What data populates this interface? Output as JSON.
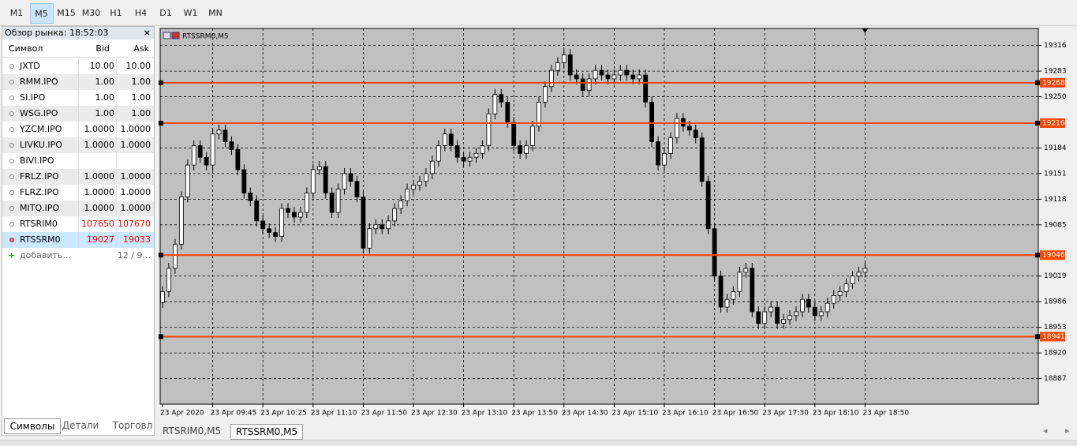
{
  "toolbar": {
    "timeframes": [
      "M1",
      "M5",
      "M15",
      "M30",
      "H1",
      "H4",
      "D1",
      "W1",
      "MN"
    ],
    "active": "M5"
  },
  "market_watch": {
    "title": "Обзор рынка: 18:52:03",
    "close": "×",
    "columns": [
      "Символ",
      "Bid",
      "Ask"
    ],
    "rows": [
      [
        "JXTD",
        "10.00",
        "10.00"
      ],
      [
        "RMM.IPO",
        "1.00",
        "1.00"
      ],
      [
        "SI.IPO",
        "1.00",
        "1.00"
      ],
      [
        "WSG.IPO",
        "1.00",
        "1.00"
      ],
      [
        "YZCM.IPO",
        "1.0000",
        "1.0000"
      ],
      [
        "LIVKU.IPO",
        "1.0000",
        "1.0000"
      ],
      [
        "BIVI.IPO",
        null,
        null
      ],
      [
        "FRLZ.IPO",
        "1.0000",
        "1.0000"
      ],
      [
        "FLRZ.IPO",
        "1.0000",
        "1.0000"
      ],
      [
        "MITQ.IPO",
        "1.0000",
        "1.0000"
      ],
      [
        "RTSRIM0",
        "107650",
        "107670"
      ],
      [
        "RTSSRM0",
        "19027",
        "19033"
      ]
    ],
    "add": "добавить...",
    "count": "12 / 9...",
    "tabs": [
      "Символы",
      "Детали",
      "Торговл"
    ]
  },
  "chart_data": {
    "type": "candlestick",
    "title": "RTSSRM0,M5",
    "categories": [
      "23 Apr 2020",
      null,
      null,
      null,
      null,
      null,
      null,
      null,
      "23 Apr 09:45",
      null,
      null,
      null,
      null,
      null,
      null,
      null,
      "23 Apr 10:25",
      null,
      null,
      null,
      null,
      null,
      null,
      null,
      "23 Apr 11:10",
      null,
      null,
      null,
      null,
      null,
      null,
      null,
      "23 Apr 11:50",
      null,
      null,
      null,
      null,
      null,
      null,
      null,
      "23 Apr 12:30",
      null,
      null,
      null,
      null,
      null,
      null,
      null,
      "23 Apr 13:10",
      null,
      null,
      null,
      null,
      null,
      null,
      null,
      "23 Apr 13:50",
      null,
      null,
      null,
      null,
      null,
      null,
      null,
      "23 Apr 14:30",
      null,
      null,
      null,
      null,
      null,
      null,
      null,
      "23 Apr 15:10",
      null,
      null,
      null,
      null,
      null,
      null,
      null,
      "23 Apr 16:10",
      null,
      null,
      null,
      null,
      null,
      null,
      null,
      "23 Apr 16:50",
      null,
      null,
      null,
      null,
      null,
      null,
      null,
      "23 Apr 17:30",
      null,
      null,
      null,
      null,
      null,
      null,
      null,
      "23 Apr 18:10",
      null,
      null,
      null,
      null,
      null,
      null,
      null,
      "23 Apr 18:50"
    ],
    "open": [
      18985,
      18999,
      19029,
      19060,
      19121,
      19162,
      19187,
      19172,
      19162,
      19202,
      19207,
      19192,
      19182,
      19156,
      19126,
      19116,
      19090,
      19080,
      19075,
      19070,
      19106,
      19101,
      19095,
      19101,
      19126,
      19156,
      19160,
      19126,
      19101,
      19131,
      19151,
      19141,
      19121,
      19055,
      19080,
      19085,
      19080,
      19090,
      19106,
      19116,
      19131,
      19136,
      19141,
      19151,
      19167,
      19187,
      19202,
      19187,
      19172,
      19167,
      19172,
      19177,
      19187,
      19228,
      19253,
      19243,
      19217,
      19187,
      19177,
      19187,
      19212,
      19243,
      19263,
      19284,
      19294,
      19304,
      19278,
      19273,
      19258,
      19273,
      19284,
      19278,
      19273,
      19278,
      19284,
      19278,
      19273,
      19278,
      19243,
      19192,
      19162,
      19177,
      19197,
      19222,
      19212,
      19207,
      19197,
      19141,
      19080,
      19019,
      18979,
      18989,
      18999,
      19024,
      19029,
      18973,
      18958,
      18973,
      18979,
      18958,
      18963,
      18968,
      18973,
      18989,
      18979,
      18968,
      18973,
      18984,
      18994,
      18999,
      19009,
      19019,
      19024
    ],
    "high": [
      19006,
      19036,
      19067,
      19128,
      19169,
      19194,
      19194,
      19179,
      19209,
      19214,
      19214,
      19199,
      19189,
      19163,
      19133,
      19123,
      19097,
      19087,
      19082,
      19113,
      19113,
      19108,
      19108,
      19133,
      19163,
      19167,
      19167,
      19133,
      19138,
      19158,
      19158,
      19148,
      19128,
      19087,
      19092,
      19092,
      19097,
      19113,
      19123,
      19138,
      19143,
      19148,
      19158,
      19174,
      19194,
      19209,
      19209,
      19194,
      19179,
      19179,
      19184,
      19194,
      19235,
      19260,
      19260,
      19250,
      19224,
      19194,
      19194,
      19219,
      19250,
      19270,
      19291,
      19301,
      19311,
      19311,
      19285,
      19280,
      19280,
      19291,
      19291,
      19285,
      19285,
      19291,
      19291,
      19285,
      19285,
      19285,
      19250,
      19199,
      19184,
      19204,
      19229,
      19229,
      19219,
      19214,
      19204,
      19148,
      19087,
      19026,
      18996,
      19006,
      19031,
      19036,
      19036,
      18980,
      18980,
      18986,
      18986,
      18970,
      18975,
      18980,
      18996,
      18996,
      18986,
      18980,
      18991,
      19001,
      19006,
      19016,
      19026,
      19031,
      19036
    ],
    "low": [
      18978,
      18992,
      19022,
      19053,
      19114,
      19155,
      19165,
      19155,
      19155,
      19195,
      19185,
      19175,
      19149,
      19119,
      19109,
      19083,
      19073,
      19068,
      19063,
      19063,
      19094,
      19088,
      19088,
      19094,
      19119,
      19149,
      19119,
      19094,
      19094,
      19124,
      19134,
      19114,
      19048,
      19048,
      19073,
      19073,
      19073,
      19083,
      19099,
      19109,
      19124,
      19129,
      19134,
      19144,
      19160,
      19180,
      19180,
      19165,
      19160,
      19160,
      19165,
      19170,
      19180,
      19221,
      19236,
      19210,
      19180,
      19170,
      19170,
      19180,
      19205,
      19236,
      19256,
      19277,
      19287,
      19271,
      19266,
      19251,
      19251,
      19266,
      19271,
      19266,
      19266,
      19271,
      19271,
      19266,
      19266,
      19236,
      19185,
      19155,
      19155,
      19170,
      19190,
      19205,
      19200,
      19190,
      19134,
      19073,
      19012,
      18972,
      18972,
      18982,
      18992,
      19017,
      18966,
      18951,
      18951,
      18966,
      18951,
      18951,
      18956,
      18961,
      18966,
      18972,
      18961,
      18961,
      18966,
      18977,
      18987,
      18992,
      19002,
      19012,
      19017
    ],
    "close": [
      18999,
      19029,
      19060,
      19121,
      19162,
      19187,
      19172,
      19162,
      19202,
      19207,
      19192,
      19182,
      19156,
      19126,
      19116,
      19090,
      19080,
      19075,
      19070,
      19106,
      19101,
      19095,
      19101,
      19126,
      19156,
      19160,
      19126,
      19101,
      19131,
      19151,
      19141,
      19121,
      19055,
      19080,
      19085,
      19080,
      19090,
      19106,
      19116,
      19131,
      19136,
      19141,
      19151,
      19167,
      19187,
      19202,
      19187,
      19172,
      19167,
      19172,
      19177,
      19187,
      19228,
      19253,
      19243,
      19217,
      19187,
      19177,
      19187,
      19212,
      19243,
      19263,
      19284,
      19294,
      19304,
      19278,
      19273,
      19258,
      19273,
      19284,
      19278,
      19273,
      19278,
      19284,
      19278,
      19273,
      19278,
      19243,
      19192,
      19162,
      19177,
      19197,
      19222,
      19212,
      19207,
      19197,
      19141,
      19080,
      19019,
      18979,
      18989,
      18999,
      19024,
      19029,
      18973,
      18958,
      18973,
      18979,
      18958,
      18963,
      18968,
      18973,
      18989,
      18979,
      18968,
      18973,
      18984,
      18994,
      18999,
      19009,
      19019,
      19024,
      19029
    ],
    "ylim": [
      18854,
      19338
    ],
    "yticks": [
      19316,
      19283,
      19250,
      19184,
      19151,
      19118,
      19085,
      19019,
      18986,
      18953,
      18920,
      18887
    ],
    "levels": [
      19268,
      19216,
      19046,
      18941
    ],
    "level_color": "#ff4500",
    "grid": true
  },
  "chart_tabs": [
    "RTSRIM0,M5",
    "RTSSRM0,M5"
  ],
  "chart_tab_active": "RTSSRM0,M5"
}
